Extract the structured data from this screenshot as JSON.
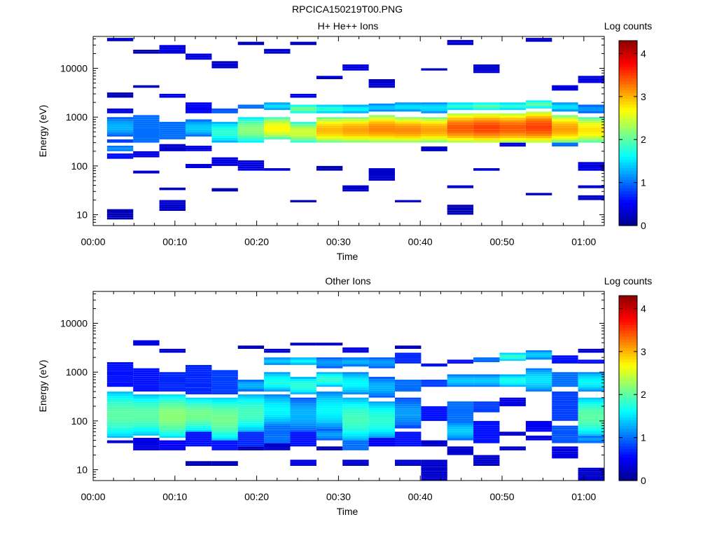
{
  "figure": {
    "title": "RPCICA150219T00.PNG"
  },
  "colormap": [
    "#00008b",
    "#0000ff",
    "#0080ff",
    "#00ffff",
    "#80ff80",
    "#ffff00",
    "#ff8000",
    "#ff0000",
    "#8b0000"
  ],
  "chart_data": [
    {
      "type": "heatmap",
      "title": "H+ He++ Ions",
      "xlabel": "Time",
      "ylabel": "Energy (eV)",
      "colorbar_label": "Log counts",
      "yscale": "log",
      "ylim": [
        6,
        45000
      ],
      "xlim": [
        "00:00",
        "01:02:30"
      ],
      "clim": [
        0,
        4.3
      ],
      "x_ticks": [
        "00:00",
        "00:10",
        "00:20",
        "00:30",
        "00:40",
        "00:50",
        "01:00"
      ],
      "y_ticks": [
        "10",
        "100",
        "1000",
        "10000"
      ],
      "cbar_ticks": [
        "0",
        "1",
        "2",
        "3",
        "4"
      ],
      "time_bin_starts_min": [
        1.7,
        4.9,
        8.1,
        11.3,
        14.5,
        17.7,
        20.9,
        24.1,
        27.3,
        30.5,
        33.7,
        36.9,
        40.1,
        43.3,
        46.5,
        49.7,
        52.9,
        56.1,
        59.3
      ],
      "bin_width_min": 3.2,
      "columns": [
        [
          [
            8,
            13,
            0.2
          ],
          [
            140,
            180,
            0.6
          ],
          [
            200,
            260,
            1.2
          ],
          [
            300,
            350,
            0.8
          ],
          [
            400,
            1000,
            1.3
          ],
          [
            1200,
            1500,
            0.4
          ],
          [
            2500,
            3200,
            0.2
          ],
          [
            36000,
            42000,
            0.3
          ]
        ],
        [
          [
            70,
            80,
            0.3
          ],
          [
            150,
            200,
            0.4
          ],
          [
            300,
            1100,
            1.0
          ],
          [
            4000,
            4500,
            0.2
          ],
          [
            20000,
            24000,
            0.2
          ]
        ],
        [
          [
            12,
            20,
            0.3
          ],
          [
            32,
            36,
            0.2
          ],
          [
            200,
            280,
            0.3
          ],
          [
            350,
            800,
            1.0
          ],
          [
            2500,
            3000,
            0.4
          ],
          [
            20000,
            30000,
            0.4
          ]
        ],
        [
          [
            90,
            110,
            0.4
          ],
          [
            200,
            260,
            0.4
          ],
          [
            400,
            900,
            1.4
          ],
          [
            1200,
            2000,
            0.5
          ],
          [
            15000,
            20000,
            0.4
          ]
        ],
        [
          [
            30,
            35,
            0.2
          ],
          [
            100,
            150,
            0.4
          ],
          [
            300,
            800,
            1.8
          ],
          [
            1200,
            1500,
            0.9
          ],
          [
            10000,
            14000,
            0.3
          ]
        ],
        [
          [
            80,
            130,
            0.4
          ],
          [
            300,
            1000,
            2.2
          ],
          [
            1500,
            1800,
            1.0
          ],
          [
            30000,
            35000,
            0.2
          ]
        ],
        [
          [
            80,
            90,
            0.3
          ],
          [
            350,
            1000,
            2.7
          ],
          [
            1400,
            2000,
            1.5
          ],
          [
            20000,
            25000,
            0.3
          ]
        ],
        [
          [
            18,
            20,
            0.2
          ],
          [
            300,
            800,
            2.5
          ],
          [
            1200,
            1800,
            2.1
          ],
          [
            2500,
            3000,
            0.4
          ],
          [
            30000,
            35000,
            0.2
          ]
        ],
        [
          [
            80,
            100,
            0.2
          ],
          [
            300,
            1000,
            3.0
          ],
          [
            1200,
            1800,
            1.8
          ],
          [
            6000,
            7000,
            0.3
          ]
        ],
        [
          [
            30,
            40,
            0.3
          ],
          [
            300,
            1000,
            3.1
          ],
          [
            1200,
            1800,
            1.6
          ],
          [
            9000,
            12000,
            0.4
          ]
        ],
        [
          [
            50,
            90,
            0.3
          ],
          [
            300,
            1100,
            3.2
          ],
          [
            1300,
            1900,
            1.4
          ],
          [
            4000,
            6000,
            0.3
          ]
        ],
        [
          [
            18,
            20,
            0.3
          ],
          [
            300,
            1000,
            3.2
          ],
          [
            1300,
            2000,
            1.5
          ]
        ],
        [
          [
            200,
            250,
            0.3
          ],
          [
            300,
            1000,
            3.1
          ],
          [
            1200,
            2000,
            1.5
          ],
          [
            9000,
            10000,
            0.3
          ]
        ],
        [
          [
            10,
            16,
            0.2
          ],
          [
            35,
            40,
            0.3
          ],
          [
            300,
            1200,
            3.4
          ],
          [
            1400,
            2000,
            1.8
          ],
          [
            30000,
            38000,
            0.3
          ]
        ],
        [
          [
            80,
            90,
            0.3
          ],
          [
            300,
            1200,
            3.5
          ],
          [
            1400,
            2000,
            2.0
          ],
          [
            8000,
            12000,
            0.3
          ]
        ],
        [
          [
            250,
            300,
            0.4
          ],
          [
            300,
            1200,
            3.4
          ],
          [
            1400,
            2000,
            1.8
          ]
        ],
        [
          [
            25,
            28,
            0.3
          ],
          [
            300,
            1300,
            3.5
          ],
          [
            1500,
            2200,
            2.0
          ],
          [
            35000,
            42000,
            0.3
          ]
        ],
        [
          [
            250,
            350,
            1.0
          ],
          [
            300,
            1100,
            3.1
          ],
          [
            1300,
            2000,
            1.5
          ],
          [
            3500,
            4500,
            0.4
          ]
        ],
        [
          [
            20,
            25,
            0.3
          ],
          [
            35,
            40,
            0.3
          ],
          [
            80,
            120,
            0.4
          ],
          [
            300,
            1000,
            2.8
          ],
          [
            1200,
            1800,
            1.2
          ],
          [
            5000,
            7000,
            0.4
          ]
        ]
      ]
    },
    {
      "type": "heatmap",
      "title": "Other Ions",
      "xlabel": "Time",
      "ylabel": "Energy (eV)",
      "colorbar_label": "Log counts",
      "yscale": "log",
      "ylim": [
        6,
        45000
      ],
      "xlim": [
        "00:00",
        "01:02:30"
      ],
      "clim": [
        0,
        4.3
      ],
      "x_ticks": [
        "00:00",
        "00:10",
        "00:20",
        "00:30",
        "00:40",
        "00:50",
        "01:00"
      ],
      "y_ticks": [
        "10",
        "100",
        "1000",
        "10000"
      ],
      "cbar_ticks": [
        "0",
        "1",
        "2",
        "3",
        "4"
      ],
      "time_bin_starts_min": [
        1.7,
        4.9,
        8.1,
        11.3,
        14.5,
        17.7,
        20.9,
        24.1,
        27.3,
        30.5,
        33.7,
        36.9,
        40.1,
        43.3,
        46.5,
        49.7,
        52.9,
        56.1,
        59.3
      ],
      "bin_width_min": 3.2,
      "columns": [
        [
          [
            35,
            40,
            0.3
          ],
          [
            45,
            400,
            2.0
          ],
          [
            500,
            1600,
            0.6
          ]
        ],
        [
          [
            25,
            45,
            0.4
          ],
          [
            50,
            350,
            2.0
          ],
          [
            400,
            1200,
            0.6
          ],
          [
            3500,
            4500,
            0.4
          ]
        ],
        [
          [
            25,
            40,
            0.5
          ],
          [
            45,
            350,
            2.2
          ],
          [
            400,
            1000,
            0.7
          ],
          [
            2500,
            3000,
            0.3
          ]
        ],
        [
          [
            12,
            15,
            0.2
          ],
          [
            30,
            60,
            0.6
          ],
          [
            60,
            300,
            2.1
          ],
          [
            350,
            1400,
            0.7
          ]
        ],
        [
          [
            12,
            15,
            0.2
          ],
          [
            25,
            40,
            0.6
          ],
          [
            40,
            300,
            2.1
          ],
          [
            350,
            1100,
            0.8
          ]
        ],
        [
          [
            25,
            30,
            0.2
          ],
          [
            30,
            60,
            0.7
          ],
          [
            60,
            350,
            1.9
          ],
          [
            400,
            700,
            1.3
          ],
          [
            3000,
            3500,
            0.2
          ]
        ],
        [
          [
            25,
            35,
            0.3
          ],
          [
            35,
            80,
            1.0
          ],
          [
            80,
            350,
            1.6
          ],
          [
            400,
            1000,
            1.7
          ],
          [
            1400,
            2000,
            1.4
          ],
          [
            2500,
            3000,
            0.3
          ]
        ],
        [
          [
            12,
            16,
            0.4
          ],
          [
            30,
            60,
            0.6
          ],
          [
            60,
            300,
            1.3
          ],
          [
            350,
            800,
            1.8
          ],
          [
            1400,
            2000,
            1.6
          ],
          [
            3500,
            4000,
            0.3
          ]
        ],
        [
          [
            25,
            30,
            0.2
          ],
          [
            40,
            70,
            1.2
          ],
          [
            70,
            400,
            1.6
          ],
          [
            500,
            1000,
            1.8
          ],
          [
            1200,
            2000,
            1.2
          ],
          [
            3500,
            4000,
            0.3
          ]
        ],
        [
          [
            12,
            16,
            0.3
          ],
          [
            25,
            40,
            1.0
          ],
          [
            40,
            300,
            1.9
          ],
          [
            350,
            1000,
            1.6
          ],
          [
            1300,
            2000,
            1.3
          ],
          [
            2500,
            3200,
            0.4
          ]
        ],
        [
          [
            30,
            45,
            0.5
          ],
          [
            45,
            250,
            1.8
          ],
          [
            300,
            800,
            1.3
          ],
          [
            1200,
            2000,
            1.2
          ]
        ],
        [
          [
            12,
            16,
            0.3
          ],
          [
            30,
            60,
            0.6
          ],
          [
            70,
            300,
            1.2
          ],
          [
            400,
            700,
            1.0
          ],
          [
            1500,
            2500,
            0.7
          ],
          [
            3000,
            3500,
            0.2
          ]
        ],
        [
          [
            6,
            16,
            0.3
          ],
          [
            30,
            40,
            0.3
          ],
          [
            100,
            200,
            0.6
          ],
          [
            500,
            700,
            0.8
          ],
          [
            1300,
            1500,
            0.6
          ]
        ],
        [
          [
            20,
            30,
            0.3
          ],
          [
            40,
            100,
            1.4
          ],
          [
            100,
            250,
            1.0
          ],
          [
            500,
            900,
            1.4
          ],
          [
            1500,
            1800,
            0.6
          ]
        ],
        [
          [
            12,
            20,
            0.3
          ],
          [
            35,
            100,
            0.6
          ],
          [
            150,
            250,
            0.8
          ],
          [
            500,
            900,
            1.4
          ],
          [
            1600,
            2000,
            1.0
          ]
        ],
        [
          [
            25,
            30,
            0.3
          ],
          [
            50,
            60,
            0.3
          ],
          [
            200,
            300,
            0.4
          ],
          [
            500,
            900,
            1.7
          ],
          [
            1700,
            2500,
            1.8
          ]
        ],
        [
          [
            40,
            50,
            0.4
          ],
          [
            60,
            100,
            0.5
          ],
          [
            400,
            1200,
            1.5
          ],
          [
            1800,
            2800,
            1.4
          ]
        ],
        [
          [
            17,
            30,
            0.4
          ],
          [
            35,
            80,
            0.9
          ],
          [
            100,
            400,
            0.8
          ],
          [
            500,
            1000,
            1.0
          ],
          [
            1500,
            2200,
            0.6
          ]
        ],
        [
          [
            6,
            11,
            0.3
          ],
          [
            35,
            50,
            1.2
          ],
          [
            50,
            300,
            2.0
          ],
          [
            400,
            1000,
            1.6
          ],
          [
            1500,
            1800,
            0.6
          ],
          [
            2500,
            3000,
            0.3
          ]
        ]
      ]
    }
  ]
}
